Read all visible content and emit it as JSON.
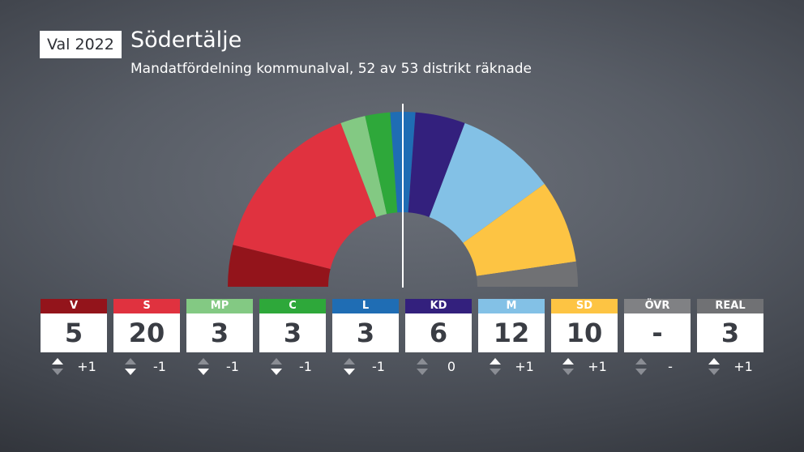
{
  "header": {
    "badge": "Val 2022",
    "title": "Södertälje",
    "subtitle": "Mandatfördelning kommunalval, 52 av 53 distrikt räknade"
  },
  "chart_data": {
    "type": "hemicycle",
    "title": "Södertälje",
    "subtitle": "Mandatfördelning kommunalval, 52 av 53 distrikt räknade",
    "total_seats": 65,
    "majority_line": true,
    "parties": [
      {
        "label": "V",
        "seats": 5,
        "seats_text": "5",
        "change": 1,
        "change_text": "+1",
        "direction": "up",
        "color": "#93141b"
      },
      {
        "label": "S",
        "seats": 20,
        "seats_text": "20",
        "change": -1,
        "change_text": "-1",
        "direction": "down",
        "color": "#e0323f"
      },
      {
        "label": "MP",
        "seats": 3,
        "seats_text": "3",
        "change": -1,
        "change_text": "-1",
        "direction": "down",
        "color": "#83c983"
      },
      {
        "label": "C",
        "seats": 3,
        "seats_text": "3",
        "change": -1,
        "change_text": "-1",
        "direction": "down",
        "color": "#2ea83a"
      },
      {
        "label": "L",
        "seats": 3,
        "seats_text": "3",
        "change": -1,
        "change_text": "-1",
        "direction": "down",
        "color": "#1f6db4"
      },
      {
        "label": "KD",
        "seats": 6,
        "seats_text": "6",
        "change": 0,
        "change_text": "0",
        "direction": "none",
        "color": "#33207d"
      },
      {
        "label": "M",
        "seats": 12,
        "seats_text": "12",
        "change": 1,
        "change_text": "+1",
        "direction": "up",
        "color": "#83c1e6"
      },
      {
        "label": "SD",
        "seats": 10,
        "seats_text": "10",
        "change": 1,
        "change_text": "+1",
        "direction": "up",
        "color": "#fdc443"
      },
      {
        "label": "ÖVR",
        "seats": 0,
        "seats_text": "-",
        "change": null,
        "change_text": "-",
        "direction": "none",
        "color": "#808184"
      },
      {
        "label": "REAL",
        "seats": 3,
        "seats_text": "3",
        "change": 1,
        "change_text": "+1",
        "direction": "up",
        "color": "#707174"
      }
    ]
  }
}
